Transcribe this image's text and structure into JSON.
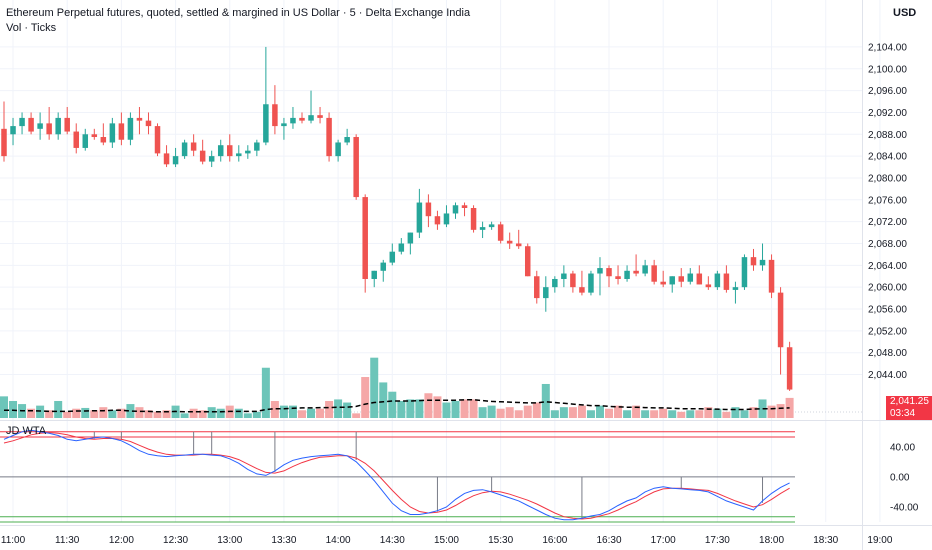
{
  "header": {
    "title": "Ethereum Perpetual futures, quoted, settled & margined in US Dollar · 5 · Delta Exchange India",
    "volume_label": "Vol · Ticks",
    "currency": "USD"
  },
  "price_panel": {
    "last_price": "2,041.25",
    "countdown": "03:34",
    "axis_ticks": [
      "2,104.00",
      "2,100.00",
      "2,096.00",
      "2,092.00",
      "2,088.00",
      "2,084.00",
      "2,080.00",
      "2,076.00",
      "2,072.00",
      "2,068.00",
      "2,064.00",
      "2,060.00",
      "2,056.00",
      "2,052.00",
      "2,048.00",
      "2,044.00"
    ]
  },
  "indicator_panel": {
    "name": "JD WTA",
    "axis_ticks": [
      "40.00",
      "0.00",
      "-40.00"
    ]
  },
  "time_axis": [
    "11:00",
    "11:30",
    "12:00",
    "12:30",
    "13:00",
    "13:30",
    "14:00",
    "14:30",
    "15:00",
    "15:30",
    "16:00",
    "16:30",
    "17:00",
    "17:30",
    "18:00",
    "18:30",
    "19:00"
  ],
  "colors": {
    "up": "#26a69a",
    "down": "#ef5350",
    "up_volume": "#6cc5b9",
    "down_volume": "#f5a7a7",
    "wt1": "#2962ff",
    "wt2": "#f23645",
    "overbought": "#f23645",
    "oversold": "#4caf50"
  },
  "chart_data": {
    "type": "candlestick",
    "title": "Ethereum Perpetual futures, quoted, settled & margined in US Dollar · 5 · Delta Exchange India",
    "ylabel": "USD",
    "ylim": [
      2043.0,
      2106.0
    ],
    "x_start": "10:55",
    "interval_minutes": 5,
    "x_ticks": [
      "11:00",
      "11:30",
      "12:00",
      "12:30",
      "13:00",
      "13:30",
      "14:00",
      "14:30",
      "15:00",
      "15:30",
      "16:00",
      "16:30",
      "17:00",
      "17:30",
      "18:00",
      "18:30",
      "19:00"
    ],
    "ohlc": [
      [
        2089,
        2094,
        2083,
        2084
      ],
      [
        2088,
        2091,
        2086,
        2089.5
      ],
      [
        2089.5,
        2092,
        2088,
        2091
      ],
      [
        2091,
        2092,
        2088,
        2088.5
      ],
      [
        2089,
        2092,
        2087,
        2090
      ],
      [
        2090,
        2093,
        2087,
        2088
      ],
      [
        2088,
        2092,
        2087,
        2091
      ],
      [
        2091,
        2093,
        2088,
        2088.5
      ],
      [
        2088.5,
        2090,
        2084.5,
        2085.5
      ],
      [
        2085.5,
        2089,
        2085,
        2088
      ],
      [
        2088,
        2089,
        2087,
        2087.5
      ],
      [
        2087.5,
        2090,
        2086,
        2086.5
      ],
      [
        2086.5,
        2091,
        2085.5,
        2090
      ],
      [
        2090,
        2092,
        2086,
        2087
      ],
      [
        2087,
        2092,
        2086,
        2091
      ],
      [
        2091,
        2093,
        2088,
        2090.5
      ],
      [
        2090.5,
        2092,
        2088,
        2089.5
      ],
      [
        2089.5,
        2090,
        2084,
        2084.5
      ],
      [
        2084.5,
        2086,
        2082,
        2082.5
      ],
      [
        2082.5,
        2085.5,
        2082,
        2084
      ],
      [
        2084,
        2087,
        2083.5,
        2086.5
      ],
      [
        2086.5,
        2088,
        2084,
        2085
      ],
      [
        2085,
        2087,
        2082.5,
        2083
      ],
      [
        2083,
        2085,
        2082,
        2084
      ],
      [
        2084,
        2087,
        2083,
        2086
      ],
      [
        2086,
        2088,
        2083,
        2084
      ],
      [
        2084,
        2086,
        2083,
        2084.5
      ],
      [
        2084.5,
        2086,
        2083.5,
        2085
      ],
      [
        2085,
        2087,
        2084,
        2086.5
      ],
      [
        2086.5,
        2104,
        2086,
        2093.5
      ],
      [
        2093.5,
        2097,
        2088,
        2089.5
      ],
      [
        2089.5,
        2091,
        2087,
        2090
      ],
      [
        2090,
        2093,
        2089,
        2091
      ],
      [
        2091,
        2092,
        2090,
        2090.5
      ],
      [
        2090.5,
        2096,
        2090,
        2091.5
      ],
      [
        2091.5,
        2093,
        2090,
        2091
      ],
      [
        2091,
        2092,
        2083,
        2084
      ],
      [
        2084,
        2087,
        2083,
        2086.5
      ],
      [
        2086.5,
        2089,
        2086,
        2087.5
      ],
      [
        2087.5,
        2088,
        2076,
        2076.5
      ],
      [
        2076.5,
        2077,
        2059,
        2061.5
      ],
      [
        2061.5,
        2063,
        2060,
        2063
      ],
      [
        2063,
        2065,
        2061,
        2064.5
      ],
      [
        2064.5,
        2068,
        2064,
        2066.5
      ],
      [
        2066.5,
        2069,
        2066,
        2068
      ],
      [
        2068,
        2070,
        2066,
        2070
      ],
      [
        2070,
        2078,
        2069,
        2075.5
      ],
      [
        2075.5,
        2077,
        2071,
        2073
      ],
      [
        2073,
        2074,
        2070.5,
        2071.5
      ],
      [
        2071.5,
        2075,
        2071,
        2073.5
      ],
      [
        2073.5,
        2075.5,
        2072.5,
        2075
      ],
      [
        2075,
        2075.5,
        2073,
        2074.5
      ],
      [
        2074.5,
        2075,
        2070,
        2070.5
      ],
      [
        2070.5,
        2072,
        2069,
        2071
      ],
      [
        2071,
        2072,
        2070.5,
        2071.5
      ],
      [
        2071.5,
        2072,
        2068,
        2068.5
      ],
      [
        2068.5,
        2070,
        2067,
        2068
      ],
      [
        2068,
        2070.5,
        2067,
        2067.5
      ],
      [
        2067.5,
        2068,
        2062,
        2062
      ],
      [
        2062,
        2063,
        2057,
        2058
      ],
      [
        2058,
        2062,
        2055.5,
        2060
      ],
      [
        2060,
        2062,
        2059,
        2061.5
      ],
      [
        2061.5,
        2064,
        2060,
        2062.5
      ],
      [
        2062.5,
        2063,
        2059,
        2060
      ],
      [
        2060,
        2063,
        2058.5,
        2059
      ],
      [
        2059,
        2063,
        2058.5,
        2062.5
      ],
      [
        2062.5,
        2065.5,
        2058.5,
        2063.5
      ],
      [
        2063.5,
        2064,
        2060,
        2062
      ],
      [
        2062,
        2064,
        2060.5,
        2061.5
      ],
      [
        2061.5,
        2064,
        2061,
        2063
      ],
      [
        2063,
        2066,
        2062,
        2062.5
      ],
      [
        2062.5,
        2065,
        2062,
        2064
      ],
      [
        2064,
        2065,
        2060.5,
        2061
      ],
      [
        2061,
        2063,
        2060,
        2060.5
      ],
      [
        2060.5,
        2062,
        2059,
        2062
      ],
      [
        2062,
        2063.5,
        2060,
        2061
      ],
      [
        2061,
        2063.5,
        2060.5,
        2062.5
      ],
      [
        2062.5,
        2064,
        2060.5,
        2060.5
      ],
      [
        2060.5,
        2062,
        2059.5,
        2060
      ],
      [
        2060,
        2063,
        2059.5,
        2062.5
      ],
      [
        2062.5,
        2064,
        2059,
        2059.5
      ],
      [
        2059.5,
        2061,
        2057,
        2060
      ],
      [
        2060,
        2066,
        2059.5,
        2065.5
      ],
      [
        2065.5,
        2067,
        2063,
        2064
      ],
      [
        2064,
        2068,
        2063,
        2065
      ],
      [
        2065,
        2066,
        2058,
        2059
      ],
      [
        2059,
        2060,
        2044,
        2049
      ],
      [
        2049,
        2050,
        2041,
        2041.25
      ]
    ],
    "volume": {
      "ylim": [
        0,
        75
      ],
      "values": [
        28,
        22,
        18,
        12,
        16,
        10,
        22,
        8,
        12,
        13,
        10,
        14,
        10,
        12,
        18,
        14,
        10,
        8,
        10,
        16,
        6,
        12,
        10,
        14,
        12,
        16,
        12,
        6,
        8,
        65,
        22,
        16,
        16,
        10,
        12,
        12,
        22,
        24,
        20,
        6,
        53,
        78,
        46,
        34,
        22,
        24,
        24,
        32,
        28,
        20,
        22,
        24,
        24,
        14,
        16,
        12,
        14,
        10,
        16,
        20,
        44,
        10,
        14,
        14,
        16,
        10,
        16,
        12,
        16,
        10,
        16,
        10,
        10,
        12,
        10,
        8,
        10,
        10,
        14,
        12,
        8,
        14,
        10,
        14,
        24,
        16,
        18,
        26
      ],
      "up": [
        true,
        true,
        true,
        false,
        true,
        false,
        true,
        false,
        false,
        true,
        false,
        false,
        true,
        false,
        true,
        false,
        false,
        false,
        false,
        true,
        true,
        false,
        false,
        true,
        true,
        false,
        true,
        true,
        true,
        true,
        false,
        true,
        true,
        false,
        true,
        false,
        false,
        true,
        true,
        false,
        false,
        true,
        true,
        true,
        true,
        true,
        true,
        false,
        false,
        true,
        true,
        false,
        false,
        true,
        true,
        false,
        false,
        false,
        false,
        false,
        true,
        true,
        true,
        false,
        false,
        true,
        true,
        false,
        false,
        true,
        false,
        true,
        false,
        false,
        true,
        false,
        true,
        false,
        false,
        true,
        false,
        true,
        true,
        false,
        true,
        false,
        false,
        false
      ],
      "ma": [
        10,
        10,
        9.5,
        9.5,
        9,
        8.5,
        8.5,
        8.5,
        9,
        9,
        9.5,
        9.5,
        10,
        10,
        9,
        8.5,
        8.5,
        8,
        8,
        8.5,
        8,
        8,
        8,
        8,
        8,
        8.5,
        8.5,
        8.5,
        8.5,
        11,
        12,
        12,
        12.5,
        13,
        13,
        13.5,
        13.5,
        14,
        14,
        15,
        18,
        20,
        21,
        22,
        22,
        22,
        22.5,
        23,
        23,
        23,
        23,
        23.5,
        23.5,
        22.5,
        21.5,
        21,
        20.5,
        20,
        19.5,
        19.5,
        21,
        20,
        19,
        18,
        17,
        16,
        16,
        15,
        14.5,
        14,
        14,
        13.5,
        13,
        13,
        12.5,
        12,
        12,
        12,
        11.5,
        11.5,
        11,
        11,
        11,
        11.5,
        12,
        12,
        12.5,
        13
      ]
    },
    "indicator": {
      "name": "JD WTA",
      "ylim": [
        -60,
        65
      ],
      "overbought": [
        60,
        53
      ],
      "oversold": [
        -60,
        -53
      ],
      "wt1": [
        50,
        55,
        60,
        62,
        60,
        58,
        55,
        50,
        48,
        50,
        52,
        53,
        51,
        48,
        42,
        35,
        30,
        28,
        27,
        28,
        29,
        30,
        30,
        29,
        28,
        24,
        18,
        10,
        4,
        2,
        8,
        16,
        22,
        25,
        27,
        28,
        29,
        30,
        28,
        20,
        8,
        -5,
        -20,
        -35,
        -45,
        -50,
        -50,
        -48,
        -45,
        -40,
        -30,
        -22,
        -18,
        -17,
        -20,
        -24,
        -28,
        -32,
        -38,
        -44,
        -50,
        -55,
        -57,
        -57,
        -55,
        -52,
        -50,
        -45,
        -38,
        -32,
        -28,
        -20,
        -15,
        -13,
        -15,
        -16,
        -17,
        -18,
        -20,
        -26,
        -32,
        -36,
        -40,
        -44,
        -32,
        -22,
        -14,
        -8
      ],
      "wt2": [
        45,
        48,
        52,
        56,
        58,
        59,
        58,
        56,
        53,
        51,
        50,
        51,
        51,
        50,
        47,
        42,
        37,
        33,
        30,
        29,
        29,
        29,
        30,
        30,
        29,
        27,
        23,
        17,
        11,
        6,
        5,
        8,
        14,
        19,
        23,
        26,
        27,
        28,
        28,
        25,
        18,
        8,
        -5,
        -18,
        -30,
        -40,
        -46,
        -48,
        -47,
        -44,
        -38,
        -31,
        -25,
        -21,
        -19,
        -20,
        -23,
        -27,
        -31,
        -36,
        -42,
        -48,
        -53,
        -55,
        -56,
        -55,
        -52,
        -49,
        -44,
        -38,
        -33,
        -26,
        -20,
        -16,
        -15,
        -15,
        -16,
        -17,
        -18,
        -22,
        -27,
        -32,
        -36,
        -40,
        -37,
        -30,
        -22,
        -15
      ]
    }
  }
}
